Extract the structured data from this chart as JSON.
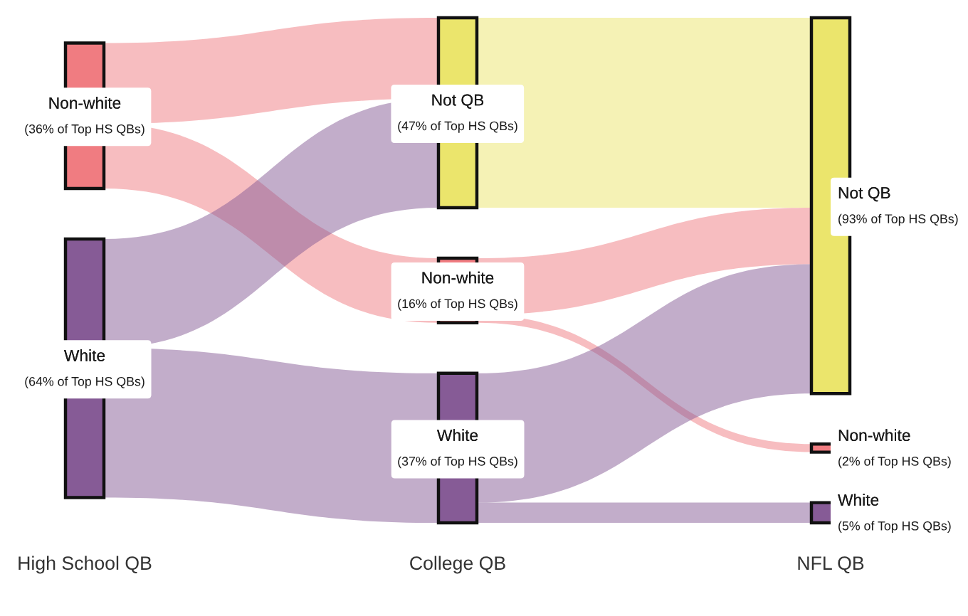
{
  "chart_data": {
    "type": "other",
    "categories": [
      "High School QB",
      "College QB",
      "NFL QB"
    ],
    "series": [
      {
        "name": "Not QB",
        "color": "#ebe56c",
        "values": [
          null,
          47,
          93
        ],
        "value_labels": [
          null,
          "(47% of Top HS QBs)",
          "(93% of Top HS QBs)"
        ]
      },
      {
        "name": "Non-white",
        "color": "#f07c81",
        "values": [
          36,
          16,
          2
        ],
        "value_labels": [
          "(36% of Top HS QBs)",
          "(16% of Top HS QBs)",
          "(2% of Top HS QBs)"
        ]
      },
      {
        "name": "White",
        "color": "#865b96",
        "values": [
          64,
          37,
          5
        ],
        "value_labels": [
          "(64% of Top HS QBs)",
          "(37% of Top HS QBs)",
          "(5% of Top HS QBs)"
        ]
      }
    ],
    "cells": [
      [
        true,
        true,
        null
      ],
      [
        true,
        null,
        true
      ],
      [
        true,
        null,
        null
      ],
      [
        true,
        true,
        null
      ],
      [
        true,
        null,
        true
      ]
    ]
  }
}
